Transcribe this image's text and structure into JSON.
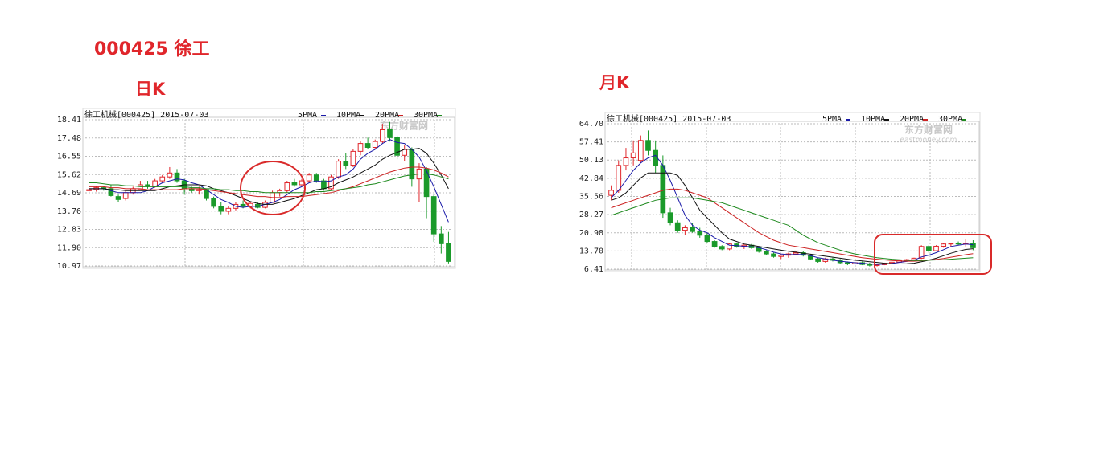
{
  "header": {
    "title": "000425 徐工"
  },
  "chart_data": [
    {
      "type": "candlestick",
      "label": "日K",
      "title": "徐工机械[000425] 2015-07-03",
      "watermark": "东方财富网",
      "ylim": [
        10.97,
        18.41
      ],
      "yticks": [
        18.41,
        17.48,
        16.55,
        15.62,
        14.69,
        13.76,
        12.83,
        {
          "value": 11.9,
          "label": "11.90"
        },
        10.97
      ],
      "grid": true,
      "up_color": "#e0262b",
      "down_color": "#1a9a2a",
      "open": [
        14.8,
        14.85,
        14.95,
        14.9,
        14.5,
        14.4,
        14.7,
        14.85,
        15.1,
        15.0,
        15.3,
        15.5,
        15.7,
        15.3,
        14.9,
        14.8,
        14.85,
        14.4,
        14.0,
        13.75,
        13.9,
        14.1,
        14.0,
        14.1,
        13.95,
        14.2,
        14.7,
        14.8,
        15.2,
        15.1,
        15.3,
        15.6,
        15.3,
        14.9,
        15.5,
        16.3,
        16.1,
        16.8,
        17.2,
        17.0,
        17.3,
        17.9,
        17.5,
        16.6,
        16.9,
        15.4,
        15.9,
        14.5,
        12.6,
        12.1
      ],
      "high": [
        14.95,
        15.0,
        15.05,
        15.1,
        14.6,
        14.8,
        15.0,
        15.3,
        15.3,
        15.4,
        15.6,
        16.0,
        15.9,
        15.4,
        15.0,
        15.0,
        14.9,
        14.5,
        14.2,
        14.0,
        14.2,
        14.3,
        14.2,
        14.2,
        14.3,
        14.8,
        14.9,
        15.3,
        15.4,
        15.4,
        15.7,
        15.7,
        15.4,
        15.6,
        16.4,
        16.7,
        16.9,
        17.3,
        17.5,
        17.4,
        18.2,
        18.3,
        17.6,
        17.1,
        17.0,
        16.2,
        16.0,
        14.6,
        13.0,
        12.7
      ],
      "low": [
        14.7,
        14.75,
        14.8,
        14.5,
        14.2,
        14.3,
        14.6,
        14.8,
        14.9,
        14.95,
        15.2,
        15.4,
        15.2,
        14.6,
        14.7,
        14.6,
        14.3,
        13.9,
        13.6,
        13.6,
        13.8,
        13.9,
        13.9,
        13.9,
        13.9,
        14.2,
        14.5,
        14.7,
        15.0,
        15.0,
        15.2,
        15.2,
        14.8,
        14.8,
        15.4,
        15.9,
        16.0,
        16.6,
        16.9,
        16.9,
        17.2,
        17.3,
        16.4,
        16.3,
        15.0,
        14.2,
        13.4,
        12.2,
        11.6,
        11.1
      ],
      "close": [
        14.85,
        14.95,
        14.9,
        14.55,
        14.35,
        14.7,
        14.9,
        15.1,
        15.05,
        15.3,
        15.5,
        15.7,
        15.3,
        14.9,
        14.8,
        14.85,
        14.4,
        14.0,
        13.75,
        13.9,
        14.1,
        14.0,
        14.15,
        13.95,
        14.2,
        14.7,
        14.8,
        15.2,
        15.1,
        15.3,
        15.6,
        15.3,
        14.9,
        15.5,
        16.3,
        16.1,
        16.8,
        17.2,
        17.0,
        17.3,
        17.9,
        17.5,
        16.6,
        16.9,
        15.4,
        15.9,
        14.5,
        12.6,
        12.1,
        11.2
      ],
      "series": [
        {
          "name": "5PMA",
          "color": "#1a1aa8",
          "values": [
            14.9,
            14.9,
            14.9,
            14.8,
            14.7,
            14.7,
            14.7,
            14.7,
            14.8,
            15.0,
            15.2,
            15.3,
            15.4,
            15.35,
            15.2,
            15.1,
            14.85,
            14.6,
            14.35,
            14.2,
            14.0,
            13.95,
            14.0,
            14.0,
            14.1,
            14.2,
            14.35,
            14.6,
            14.85,
            15.0,
            15.2,
            15.3,
            15.25,
            15.3,
            15.5,
            15.6,
            15.9,
            16.4,
            16.7,
            16.9,
            17.2,
            17.4,
            17.25,
            17.2,
            16.9,
            16.5,
            15.8,
            15.0,
            14.1,
            13.2
          ]
        },
        {
          "name": "10PMA",
          "color": "#111111",
          "values": [
            14.9,
            14.9,
            14.9,
            14.85,
            14.85,
            14.8,
            14.8,
            14.8,
            14.8,
            14.8,
            14.9,
            15.0,
            15.05,
            15.1,
            15.1,
            15.1,
            15.05,
            14.9,
            14.8,
            14.7,
            14.55,
            14.4,
            14.25,
            14.15,
            14.1,
            14.1,
            14.2,
            14.3,
            14.4,
            14.55,
            14.7,
            14.85,
            14.9,
            15.0,
            15.2,
            15.35,
            15.5,
            15.7,
            15.9,
            16.1,
            16.4,
            16.6,
            16.75,
            16.9,
            16.9,
            16.95,
            16.7,
            16.2,
            15.6,
            14.9
          ]
        },
        {
          "name": "20PMA",
          "color": "#cc2222",
          "values": [
            15.0,
            15.0,
            15.0,
            14.95,
            14.95,
            14.9,
            14.9,
            14.9,
            14.85,
            14.85,
            14.85,
            14.85,
            14.85,
            14.9,
            14.9,
            14.9,
            14.85,
            14.8,
            14.75,
            14.7,
            14.65,
            14.6,
            14.55,
            14.5,
            14.5,
            14.45,
            14.45,
            14.5,
            14.5,
            14.5,
            14.55,
            14.6,
            14.65,
            14.7,
            14.8,
            14.9,
            15.0,
            15.15,
            15.3,
            15.45,
            15.6,
            15.75,
            15.85,
            15.95,
            16.0,
            16.0,
            15.95,
            15.85,
            15.7,
            15.5
          ]
        },
        {
          "name": "30PMA",
          "color": "#1f8a1f",
          "values": [
            15.2,
            15.2,
            15.15,
            15.1,
            15.1,
            15.05,
            15.05,
            15.0,
            15.0,
            15.0,
            15.0,
            15.0,
            15.0,
            15.0,
            14.95,
            14.95,
            14.9,
            14.9,
            14.85,
            14.85,
            14.8,
            14.8,
            14.75,
            14.75,
            14.7,
            14.7,
            14.7,
            14.7,
            14.7,
            14.7,
            14.7,
            14.75,
            14.75,
            14.8,
            14.85,
            14.9,
            14.95,
            15.0,
            15.1,
            15.15,
            15.25,
            15.35,
            15.45,
            15.55,
            15.6,
            15.65,
            15.65,
            15.6,
            15.5,
            15.4
          ]
        }
      ]
    },
    {
      "type": "candlestick",
      "label": "月K",
      "title": "徐工机械[000425] 2015-07-03",
      "watermark": "东方财富网",
      "watermark_sub": "eastmoney.com",
      "ylim": [
        6.41,
        64.7
      ],
      "yticks": [
        {
          "value": 64.7,
          "label": "64.70"
        },
        57.41,
        50.13,
        42.84,
        35.56,
        28.27,
        20.98,
        {
          "value": 13.7,
          "label": "13.70"
        },
        6.41
      ],
      "grid": true,
      "up_color": "#e0262b",
      "down_color": "#1a9a2a",
      "open": [
        36,
        38,
        48,
        51,
        50,
        58,
        54,
        48,
        29,
        25,
        22,
        23,
        21.5,
        20,
        17.5,
        15.5,
        14.5,
        16.5,
        15.5,
        16,
        15,
        13.5,
        12.5,
        11.5,
        12,
        12.5,
        13,
        12,
        10.5,
        9.5,
        10.5,
        10,
        9,
        8.5,
        9,
        8.3,
        8,
        8.2,
        8.8,
        9.2,
        9.8,
        10.2,
        10.8,
        15.5,
        13.8,
        15.6,
        16.5,
        16.8,
        16.5,
        16.8
      ],
      "high": [
        40,
        50,
        55,
        58,
        60,
        62,
        58,
        52,
        31,
        26,
        24,
        25,
        23,
        21,
        18,
        16,
        17,
        17,
        16.5,
        16.5,
        15.5,
        14,
        13,
        12.5,
        13,
        13.5,
        13.5,
        12.5,
        11,
        11,
        11,
        10.5,
        9.5,
        9.5,
        9.5,
        9,
        8.5,
        9,
        9.5,
        10,
        10.5,
        11,
        16,
        16,
        16,
        17,
        17,
        17.5,
        18.5,
        18
      ],
      "low": [
        34,
        37,
        46,
        48,
        49,
        52,
        45,
        27,
        24,
        21,
        20,
        21,
        19,
        17,
        15,
        14,
        14,
        15,
        14.5,
        14.5,
        13,
        12,
        11,
        10.5,
        11,
        12,
        11.5,
        10,
        9,
        9,
        9.5,
        8.5,
        8,
        8,
        8,
        7.5,
        7.5,
        8,
        8.5,
        9,
        9.5,
        9.8,
        10.5,
        13,
        13.5,
        15,
        15.5,
        16,
        15.5,
        14
      ],
      "close": [
        38,
        48,
        51,
        53,
        58,
        54,
        48,
        29,
        25,
        22,
        23,
        21.5,
        20,
        17.5,
        15.5,
        14.5,
        16.5,
        15.5,
        16,
        15,
        13.5,
        12.5,
        11.5,
        12,
        12.5,
        13,
        12,
        10.5,
        9.5,
        10.5,
        10,
        9,
        8.5,
        9,
        8.3,
        8,
        8.2,
        8.8,
        9.2,
        9.8,
        10.2,
        10.8,
        15.5,
        13.8,
        15.6,
        16.5,
        16.8,
        16.5,
        16.8,
        15
      ],
      "series": [
        {
          "name": "5PMA",
          "color": "#1a1aa8",
          "values": [
            35,
            38,
            42,
            46,
            49,
            51,
            52,
            48,
            42,
            35,
            28,
            24,
            22,
            21,
            19,
            17.5,
            16,
            15.8,
            15.6,
            15.4,
            15,
            14.2,
            13.2,
            12.5,
            12.2,
            12.3,
            12.3,
            11.8,
            11,
            10.5,
            10,
            9.6,
            9.3,
            9,
            8.8,
            8.5,
            8.3,
            8.4,
            8.7,
            9.1,
            9.5,
            10,
            11.3,
            12,
            13,
            14.2,
            15.5,
            16,
            16.5,
            16.2
          ]
        },
        {
          "name": "10PMA",
          "color": "#111111",
          "values": [
            34,
            35,
            37,
            40,
            43,
            45,
            45,
            45,
            45,
            44,
            40,
            35,
            30,
            27,
            24,
            21,
            18.5,
            17.5,
            16.5,
            16,
            15.5,
            15,
            14.5,
            14,
            13.6,
            13.2,
            12.8,
            12.4,
            12,
            11.6,
            11.2,
            10.8,
            10.4,
            10,
            9.7,
            9.4,
            9.1,
            8.8,
            8.6,
            8.5,
            8.6,
            8.8,
            9.4,
            10,
            10.8,
            11.8,
            12.8,
            13.6,
            14.3,
            14.6
          ]
        },
        {
          "name": "20PMA",
          "color": "#cc2222",
          "values": [
            31,
            32,
            33,
            34,
            35,
            36,
            37,
            38,
            38.5,
            38.5,
            38,
            37,
            36,
            35,
            33,
            31,
            29,
            27,
            25,
            23,
            21,
            19.5,
            18,
            17,
            16,
            15.5,
            15,
            14.5,
            14,
            13.5,
            13,
            12.5,
            12,
            11.5,
            11,
            10.7,
            10.4,
            10.1,
            9.9,
            9.7,
            9.6,
            9.6,
            9.8,
            10,
            10.3,
            10.7,
            11.2,
            11.7,
            12.2,
            12.6
          ]
        },
        {
          "name": "30PMA",
          "color": "#1f8a1f",
          "values": [
            28,
            29,
            30,
            31,
            32,
            33,
            34,
            34.5,
            35,
            35,
            35,
            35,
            34.5,
            34,
            33.5,
            33,
            32,
            31,
            30,
            29,
            28,
            27,
            26,
            25,
            24,
            22,
            20,
            18.5,
            17,
            16,
            15,
            14,
            13.2,
            12.5,
            12,
            11.5,
            11,
            10.7,
            10.4,
            10.2,
            10,
            9.9,
            9.9,
            10,
            10.1,
            10.2,
            10.4,
            10.6,
            10.8,
            11
          ]
        }
      ]
    }
  ]
}
